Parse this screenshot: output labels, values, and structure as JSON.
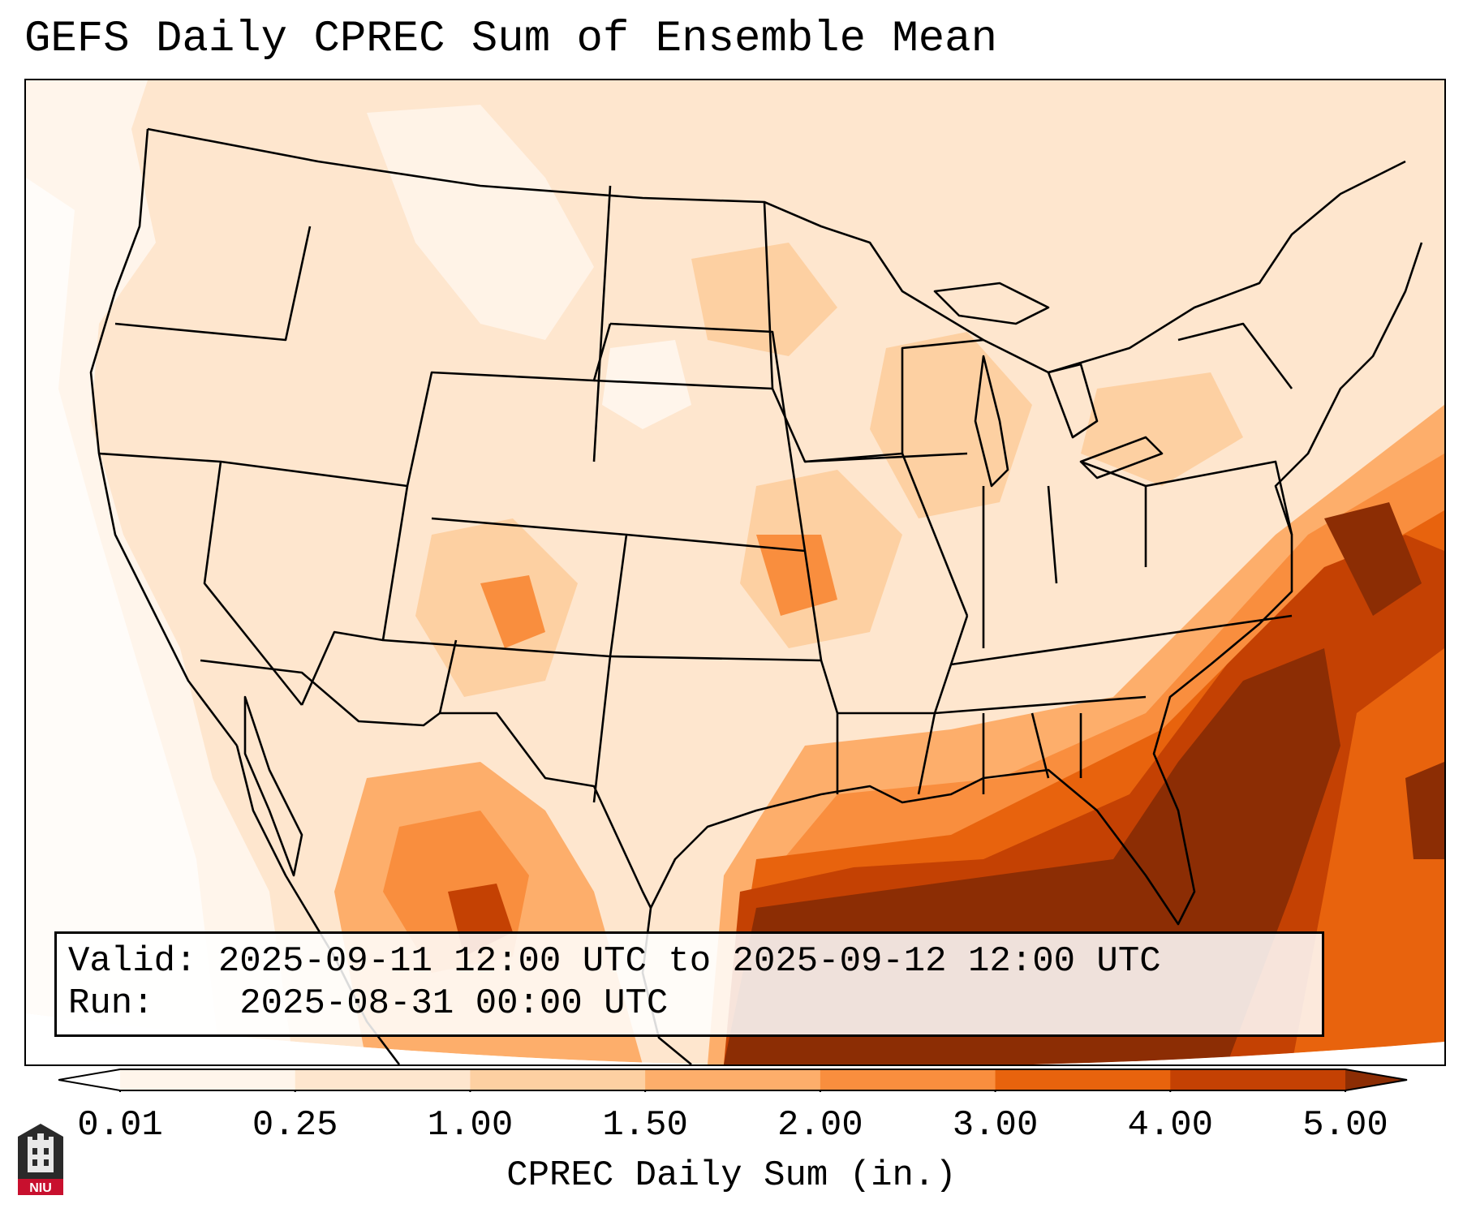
{
  "title": "GEFS Daily CPREC Sum of Ensemble Mean",
  "info": {
    "valid_label": "Valid:",
    "valid_value": "2025-09-11 12:00 UTC to 2025-09-12 12:00 UTC",
    "run_label": "Run:",
    "run_value": "2025-08-31 00:00 UTC"
  },
  "colorbar": {
    "label": "CPREC Daily Sum (in.)",
    "ticks": [
      "0.01",
      "0.25",
      "1.00",
      "1.50",
      "2.00",
      "3.00",
      "4.00",
      "5.00"
    ],
    "colors": [
      "#fff5eb",
      "#fee6ce",
      "#fdd0a2",
      "#fdae6b",
      "#f98e3e",
      "#e8630d",
      "#c44103",
      "#8c2d04"
    ],
    "under_color": "#ffffff",
    "over_color": "#8c2d04",
    "extend": "both"
  },
  "logo_text": "NIU",
  "map_colors": {
    "outside_domain": "#ffffff",
    "boundary": "#000000"
  }
}
